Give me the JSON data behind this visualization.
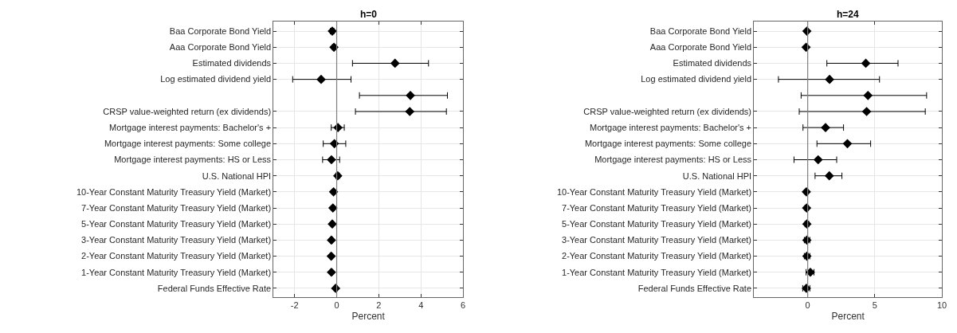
{
  "chart_data": [
    {
      "type": "scatter",
      "title": "h=0",
      "xlabel": "Percent",
      "orientation": "horizontal",
      "marker": "diamond",
      "grid": true,
      "categories": [
        "Baa Corporate Bond Yield",
        "Aaa Corporate Bond Yield",
        "Estimated dividends",
        "Log estimated dividend yield",
        null,
        "CRSP value-weighted return (ex dividends)",
        "Mortgage interest payments: Bachelor's +",
        "Mortgage interest payments: Some college",
        "Mortgage interest payments: HS or Less",
        "U.S. National HPI",
        "10-Year Constant Maturity Treasury Yield (Market)",
        "7-Year Constant Maturity Treasury Yield (Market)",
        "5-Year Constant Maturity Treasury Yield (Market)",
        "3-Year Constant Maturity Treasury Yield (Market)",
        "2-Year Constant Maturity Treasury Yield (Market)",
        "1-Year Constant Maturity Treasury Yield (Market)",
        "Federal Funds Effective Rate"
      ],
      "series": [
        {
          "color": "#000000",
          "values": [
            -0.21,
            -0.13,
            2.77,
            -0.74,
            3.5,
            3.47,
            0.06,
            -0.11,
            -0.25,
            0.05,
            -0.15,
            -0.18,
            -0.21,
            -0.25,
            -0.26,
            -0.25,
            -0.05
          ],
          "errors": [
            [
              -0.3,
              -0.13
            ],
            [
              -0.2,
              -0.07
            ],
            [
              0.75,
              4.36
            ],
            [
              -2.09,
              0.68
            ],
            [
              1.08,
              5.26
            ],
            [
              0.89,
              5.21
            ],
            [
              -0.26,
              0.36
            ],
            [
              -0.64,
              0.43
            ],
            [
              -0.67,
              0.14
            ],
            [
              -0.04,
              0.13
            ],
            [
              -0.2,
              -0.1
            ],
            [
              -0.23,
              -0.13
            ],
            [
              -0.26,
              -0.16
            ],
            [
              -0.3,
              -0.2
            ],
            [
              -0.31,
              -0.21
            ],
            [
              -0.3,
              -0.2
            ],
            [
              -0.12,
              0.02
            ]
          ]
        }
      ],
      "xlim": [
        -3,
        6
      ],
      "xticks": [
        -2,
        0,
        2,
        4,
        6
      ],
      "ref_lines": [
        {
          "axis": "x",
          "value": 0,
          "color": "#808080"
        }
      ]
    },
    {
      "type": "scatter",
      "title": "h=24",
      "xlabel": "Percent",
      "orientation": "horizontal",
      "marker": "diamond",
      "grid": true,
      "categories": [
        "Baa Corporate Bond Yield",
        "Aaa Corporate Bond Yield",
        "Estimated dividends",
        "Log estimated dividend yield",
        null,
        "CRSP value-weighted return (ex dividends)",
        "Mortgage interest payments: Bachelor's +",
        "Mortgage interest payments: Some college",
        "Mortgage interest payments: HS or Less",
        "U.S. National HPI",
        "10-Year Constant Maturity Treasury Yield (Market)",
        "7-Year Constant Maturity Treasury Yield (Market)",
        "5-Year Constant Maturity Treasury Yield (Market)",
        "3-Year Constant Maturity Treasury Yield (Market)",
        "2-Year Constant Maturity Treasury Yield (Market)",
        "1-Year Constant Maturity Treasury Yield (Market)",
        "Federal Funds Effective Rate"
      ],
      "series": [
        {
          "color": "#000000",
          "values": [
            -0.06,
            -0.12,
            4.33,
            1.63,
            4.49,
            4.39,
            1.33,
            2.96,
            0.78,
            1.61,
            -0.1,
            -0.08,
            -0.06,
            -0.06,
            -0.06,
            0.2,
            -0.1
          ],
          "errors": [
            [
              -0.12,
              0.0
            ],
            [
              -0.18,
              -0.06
            ],
            [
              1.43,
              6.73
            ],
            [
              -2.18,
              5.35
            ],
            [
              -0.49,
              8.86
            ],
            [
              -0.63,
              8.76
            ],
            [
              -0.35,
              2.67
            ],
            [
              0.69,
              4.69
            ],
            [
              -1.02,
              2.16
            ],
            [
              0.55,
              2.55
            ],
            [
              -0.2,
              0.0
            ],
            [
              -0.2,
              0.04
            ],
            [
              -0.2,
              0.08
            ],
            [
              -0.25,
              0.16
            ],
            [
              -0.25,
              0.16
            ],
            [
              -0.12,
              0.47
            ],
            [
              -0.37,
              0.16
            ]
          ]
        }
      ],
      "xlim": [
        -4,
        10
      ],
      "xticks": [
        0,
        5,
        10
      ],
      "ref_lines": [
        {
          "axis": "x",
          "value": 0,
          "color": "#808080"
        }
      ]
    }
  ]
}
